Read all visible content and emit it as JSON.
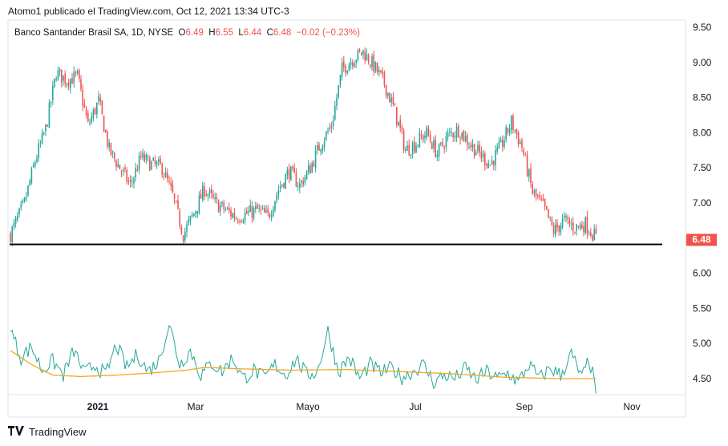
{
  "header": {
    "publisher": "Atomo1 publicado el TradingView.com, Oct 12, 2021 13:34 UTC-3"
  },
  "legend": {
    "symbol": "Banco Santander Brasil SA, 1D, NYSE",
    "open_label": "O",
    "open": "6.49",
    "high_label": "H",
    "high": "6.55",
    "low_label": "L",
    "low": "6.44",
    "close_label": "C",
    "close": "6.48",
    "change": "−0.02 (−0.23%)"
  },
  "footer": {
    "brand": "TradingView",
    "logo_icon": "tradingview-logo-icon"
  },
  "colors": {
    "up": "#26a69a",
    "down": "#ef5350",
    "support": "#000000",
    "oscillator": "#26a69a",
    "oscillator_ma": "#f5a623",
    "last_price_bg": "#ef5350"
  },
  "chart_data": {
    "type": "candlestick",
    "price_axis": {
      "ticks": [
        "9.50",
        "9.00",
        "8.50",
        "8.00",
        "7.50",
        "7.00",
        "6.50",
        "6.00",
        "5.50",
        "5.00",
        "4.50"
      ],
      "range": [
        4.3,
        9.6
      ]
    },
    "time_axis": {
      "ticks": [
        "2021",
        "Mar",
        "Mayo",
        "Jul",
        "Sep",
        "Nov"
      ]
    },
    "last_price": "6.48",
    "support_line": 6.41,
    "price_keypoints": [
      [
        0,
        6.55
      ],
      [
        8,
        7.0
      ],
      [
        14,
        7.6
      ],
      [
        20,
        8.05
      ],
      [
        26,
        8.85
      ],
      [
        32,
        8.75
      ],
      [
        38,
        8.8
      ],
      [
        44,
        8.1
      ],
      [
        50,
        8.45
      ],
      [
        56,
        7.75
      ],
      [
        62,
        7.5
      ],
      [
        68,
        7.25
      ],
      [
        74,
        7.65
      ],
      [
        80,
        7.55
      ],
      [
        86,
        7.5
      ],
      [
        92,
        7.1
      ],
      [
        98,
        6.55
      ],
      [
        104,
        6.85
      ],
      [
        110,
        7.2
      ],
      [
        116,
        7.0
      ],
      [
        122,
        6.9
      ],
      [
        128,
        6.8
      ],
      [
        134,
        6.85
      ],
      [
        140,
        6.9
      ],
      [
        146,
        6.8
      ],
      [
        152,
        7.2
      ],
      [
        158,
        7.45
      ],
      [
        164,
        7.25
      ],
      [
        170,
        7.5
      ],
      [
        176,
        7.85
      ],
      [
        182,
        8.1
      ],
      [
        188,
        8.9
      ],
      [
        194,
        9.05
      ],
      [
        200,
        9.15
      ],
      [
        206,
        8.95
      ],
      [
        212,
        8.7
      ],
      [
        218,
        8.3
      ],
      [
        224,
        7.75
      ],
      [
        230,
        7.85
      ],
      [
        236,
        8.0
      ],
      [
        242,
        7.7
      ],
      [
        248,
        7.95
      ],
      [
        254,
        8.05
      ],
      [
        260,
        7.85
      ],
      [
        266,
        7.7
      ],
      [
        272,
        7.55
      ],
      [
        278,
        7.8
      ],
      [
        284,
        8.15
      ],
      [
        290,
        7.8
      ],
      [
        296,
        7.15
      ],
      [
        302,
        6.95
      ],
      [
        308,
        6.6
      ],
      [
        314,
        6.75
      ],
      [
        320,
        6.65
      ],
      [
        326,
        6.7
      ],
      [
        332,
        6.5
      ]
    ],
    "oscillator_keypoints": [
      [
        0,
        5.2
      ],
      [
        6,
        4.8
      ],
      [
        12,
        4.95
      ],
      [
        18,
        4.62
      ],
      [
        24,
        4.75
      ],
      [
        30,
        4.55
      ],
      [
        36,
        4.9
      ],
      [
        42,
        4.58
      ],
      [
        48,
        4.7
      ],
      [
        54,
        4.55
      ],
      [
        60,
        4.98
      ],
      [
        66,
        4.65
      ],
      [
        72,
        4.85
      ],
      [
        78,
        4.6
      ],
      [
        84,
        4.75
      ],
      [
        90,
        5.28
      ],
      [
        96,
        4.7
      ],
      [
        102,
        4.9
      ],
      [
        108,
        4.55
      ],
      [
        114,
        4.72
      ],
      [
        120,
        4.6
      ],
      [
        126,
        4.8
      ],
      [
        132,
        4.5
      ],
      [
        138,
        4.62
      ],
      [
        144,
        4.5
      ],
      [
        150,
        4.7
      ],
      [
        156,
        4.55
      ],
      [
        162,
        4.78
      ],
      [
        168,
        4.55
      ],
      [
        174,
        4.6
      ],
      [
        180,
        5.18
      ],
      [
        186,
        4.6
      ],
      [
        192,
        4.8
      ],
      [
        198,
        4.5
      ],
      [
        204,
        4.7
      ],
      [
        210,
        4.58
      ],
      [
        216,
        4.65
      ],
      [
        222,
        4.52
      ],
      [
        228,
        4.6
      ],
      [
        234,
        4.7
      ],
      [
        240,
        4.45
      ],
      [
        246,
        4.55
      ],
      [
        252,
        4.5
      ],
      [
        258,
        4.65
      ],
      [
        264,
        4.48
      ],
      [
        270,
        4.6
      ],
      [
        276,
        4.5
      ],
      [
        282,
        4.58
      ],
      [
        288,
        4.45
      ],
      [
        294,
        4.7
      ],
      [
        300,
        4.5
      ],
      [
        306,
        4.65
      ],
      [
        312,
        4.55
      ],
      [
        318,
        4.85
      ],
      [
        324,
        4.5
      ],
      [
        328,
        4.78
      ],
      [
        332,
        4.35
      ]
    ],
    "oscillator_ma_keypoints": [
      [
        0,
        4.9
      ],
      [
        12,
        4.7
      ],
      [
        24,
        4.55
      ],
      [
        40,
        4.53
      ],
      [
        60,
        4.55
      ],
      [
        80,
        4.58
      ],
      [
        100,
        4.62
      ],
      [
        110,
        4.66
      ],
      [
        130,
        4.64
      ],
      [
        160,
        4.62
      ],
      [
        190,
        4.63
      ],
      [
        220,
        4.6
      ],
      [
        250,
        4.57
      ],
      [
        280,
        4.52
      ],
      [
        310,
        4.5
      ],
      [
        332,
        4.5
      ]
    ]
  }
}
